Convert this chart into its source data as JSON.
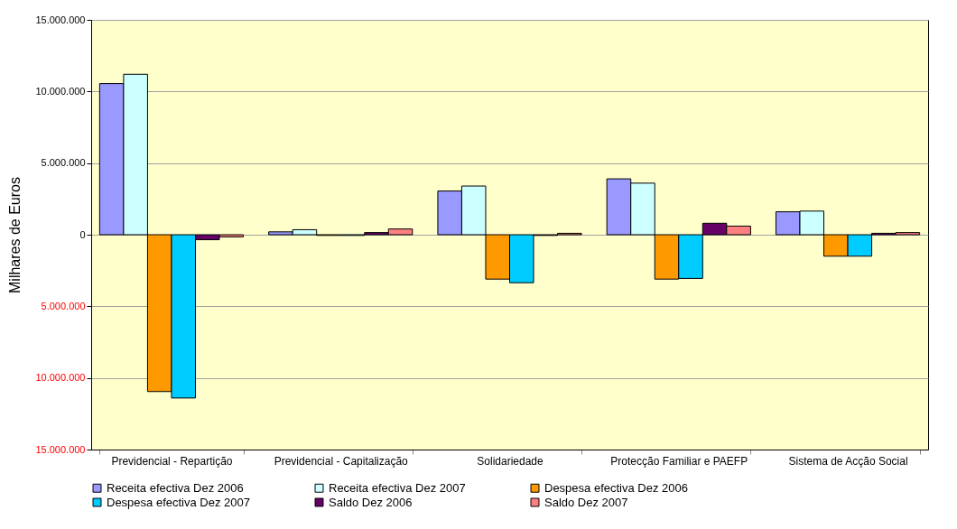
{
  "chart_data": {
    "type": "bar",
    "ylabel": "Milhares de Euros",
    "categories": [
      "Previdencial - Repartição",
      "Previdencial - Capitalização",
      "Solidariedade",
      "Protecção Familiar e PAEFP",
      "Sistema de Acção Social"
    ],
    "series": [
      {
        "name": "Receita efectiva Dez 2006",
        "color": "#9999ff",
        "values": [
          10550000,
          200000,
          3050000,
          3900000,
          1600000
        ]
      },
      {
        "name": "Receita efectiva Dez 2007",
        "color": "#ccffff",
        "values": [
          11200000,
          350000,
          3400000,
          3600000,
          1650000
        ]
      },
      {
        "name": "Despesa efectiva Dez 2006",
        "color": "#ff9900",
        "values": [
          -10950000,
          -50000,
          -3100000,
          -3100000,
          -1500000
        ]
      },
      {
        "name": "Despesa efectiva Dez 2007",
        "color": "#00ccff",
        "values": [
          -11400000,
          -50000,
          -3350000,
          -3050000,
          -1500000
        ]
      },
      {
        "name": "Saldo Dez 2006",
        "color": "#660066",
        "values": [
          -350000,
          150000,
          -50000,
          800000,
          100000
        ]
      },
      {
        "name": "Saldo Dez 2007",
        "color": "#ff8080",
        "values": [
          -150000,
          400000,
          100000,
          600000,
          150000
        ]
      }
    ],
    "ylim": [
      -15000000,
      15000000
    ],
    "yticks": [
      {
        "value": -15000000,
        "label": "15.000.000"
      },
      {
        "value": -10000000,
        "label": "10.000.000"
      },
      {
        "value": -5000000,
        "label": "5.000.000"
      },
      {
        "value": 0,
        "label": "0"
      },
      {
        "value": 5000000,
        "label": "5.000.000"
      },
      {
        "value": 10000000,
        "label": "10.000.000"
      },
      {
        "value": 15000000,
        "label": "15.000.000"
      }
    ],
    "grid": "y",
    "legend": "bottom"
  }
}
